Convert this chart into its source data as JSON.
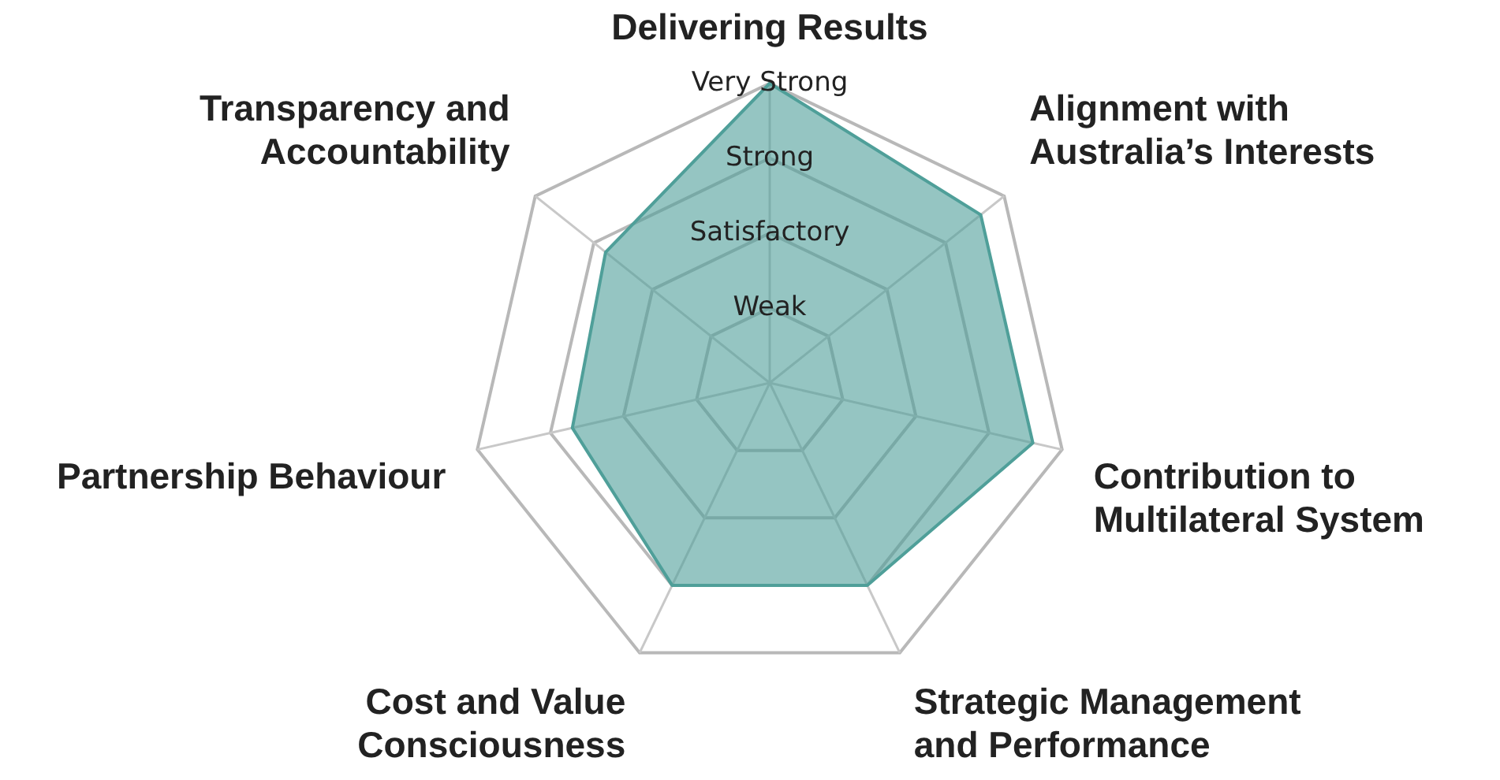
{
  "chart_data": {
    "type": "radar",
    "categories": [
      "Delivering Results",
      "Alignment with Australia’s Interests",
      "Contribution to Multilateral System",
      "Strategic Management and Performance",
      "Cost and Value Consciousness",
      "Partnership Behaviour",
      "Transparency and Accountability"
    ],
    "series": [
      {
        "color": "#4f9f99",
        "values": [
          4,
          3.6,
          3.6,
          3,
          3,
          2.7,
          2.8
        ]
      }
    ],
    "ylim": [
      0,
      4
    ],
    "yticks": [
      {
        "value": 1,
        "label": "Weak"
      },
      {
        "value": 2,
        "label": "Satisfactory"
      },
      {
        "value": 3,
        "label": "Strong"
      },
      {
        "value": 4,
        "label": "Very Strong"
      }
    ],
    "grid": true,
    "legend": false
  }
}
